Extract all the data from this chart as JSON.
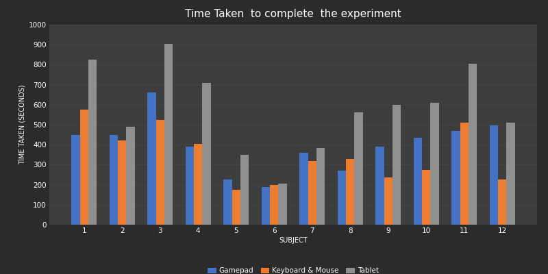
{
  "title": "Time Taken  to complete  the experiment",
  "xlabel": "SUBJECT",
  "ylabel": "TIME TAKEN (SECONDS)",
  "subjects": [
    1,
    2,
    3,
    4,
    5,
    6,
    7,
    8,
    9,
    10,
    11,
    12
  ],
  "gamepad": [
    450,
    450,
    660,
    390,
    225,
    190,
    360,
    270,
    390,
    435,
    470,
    495
  ],
  "keyboard_mouse": [
    575,
    420,
    525,
    405,
    175,
    200,
    320,
    330,
    235,
    275,
    510,
    225
  ],
  "tablet": [
    825,
    490,
    905,
    710,
    350,
    205,
    385,
    560,
    600,
    610,
    805,
    510
  ],
  "gamepad_color": "#4472c4",
  "keyboard_mouse_color": "#ed7d31",
  "tablet_color": "#909090",
  "background_color": "#2b2b2b",
  "plot_bg_top": "#3d3d3d",
  "plot_bg_bottom": "#2b2b2b",
  "grid_color": "#4a4a4a",
  "text_color": "#ffffff",
  "ylim": [
    0,
    1000
  ],
  "yticks": [
    0,
    100,
    200,
    300,
    400,
    500,
    600,
    700,
    800,
    900,
    1000
  ],
  "title_fontsize": 11,
  "axis_label_fontsize": 7,
  "tick_fontsize": 7.5,
  "legend_fontsize": 7.5,
  "bar_width": 0.22,
  "legend_labels": [
    "Gamepad",
    "Keyboard & Mouse",
    "Tablet"
  ]
}
